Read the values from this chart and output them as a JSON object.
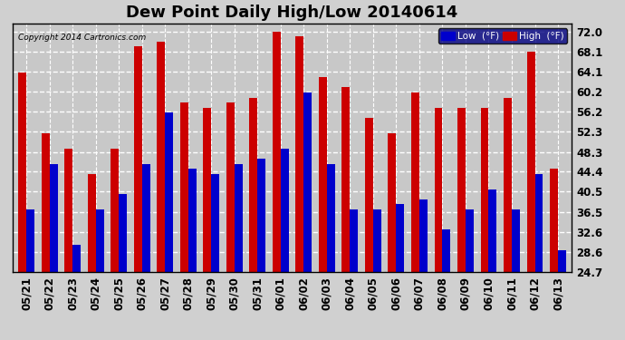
{
  "title": "Dew Point Daily High/Low 20140614",
  "copyright": "Copyright 2014 Cartronics.com",
  "dates": [
    "05/21",
    "05/22",
    "05/23",
    "05/24",
    "05/25",
    "05/26",
    "05/27",
    "05/28",
    "05/29",
    "05/30",
    "05/31",
    "06/01",
    "06/02",
    "06/03",
    "06/04",
    "06/05",
    "06/06",
    "06/07",
    "06/08",
    "06/09",
    "06/10",
    "06/11",
    "06/12",
    "06/13"
  ],
  "low_values": [
    37,
    46,
    30,
    37,
    40,
    46,
    56,
    45,
    44,
    46,
    47,
    49,
    60,
    46,
    37,
    37,
    38,
    39,
    33,
    37,
    41,
    37,
    44,
    29
  ],
  "high_values": [
    64,
    52,
    49,
    44,
    49,
    69,
    70,
    58,
    57,
    58,
    59,
    72,
    71,
    63,
    61,
    55,
    52,
    60,
    57,
    57,
    57,
    59,
    68,
    45
  ],
  "low_color": "#0000cc",
  "high_color": "#cc0000",
  "plot_bg_color": "#c8c8c8",
  "fig_bg_color": "#d0d0d0",
  "grid_color": "#ffffff",
  "border_color": "#000000",
  "yticks": [
    24.7,
    28.6,
    32.6,
    36.5,
    40.5,
    44.4,
    48.3,
    52.3,
    56.2,
    60.2,
    64.1,
    68.1,
    72.0
  ],
  "ymin": 24.7,
  "ymax": 73.5,
  "title_fontsize": 13,
  "tick_fontsize": 8.5,
  "legend_low_label": "Low  (°F)",
  "legend_high_label": "High  (°F)",
  "bar_width": 0.35
}
